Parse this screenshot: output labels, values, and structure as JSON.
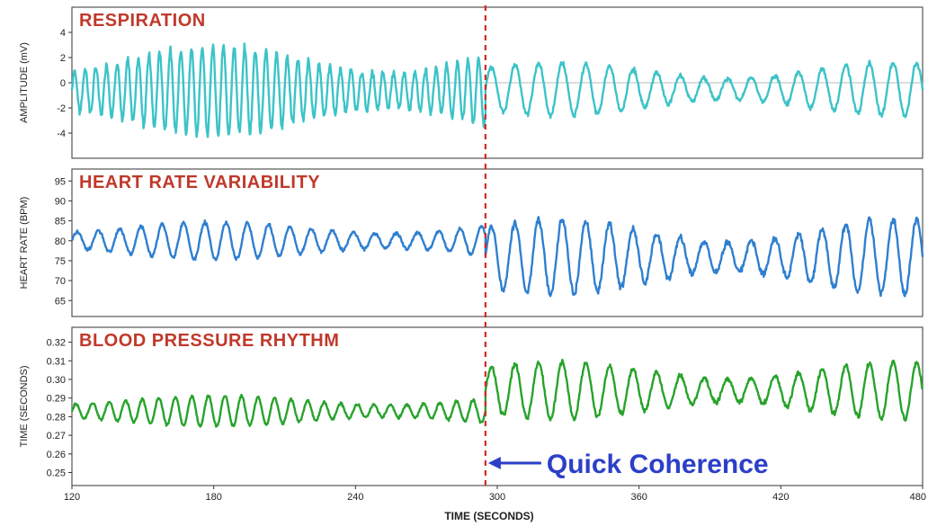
{
  "chart_data": {
    "type": "line",
    "shared_x": {
      "label": "TIME (SECONDS)",
      "range": [
        120,
        480
      ],
      "ticks": [
        120,
        180,
        240,
        300,
        360,
        420,
        480
      ]
    },
    "annotation": {
      "text": "Quick Coherence",
      "x": 295,
      "line_style": "dashed",
      "color": "#d62728",
      "arrow_color": "#2b3fc8"
    },
    "panels": [
      {
        "title": "RESPIRATION",
        "ylabel": "AMPLITUDE (mV)",
        "ylim": [
          -6,
          6
        ],
        "yticks": [
          4,
          2,
          0,
          -2,
          -4
        ],
        "color": "#3cc3c8",
        "baseline": 0,
        "signal": {
          "segments": [
            {
              "x_start": 120,
              "x_end": 295,
              "period": 4.5,
              "amplitude": 3.0,
              "center": -0.6
            },
            {
              "x_start": 295,
              "x_end": 480,
              "period": 10.0,
              "amplitude": 1.8,
              "center": -0.5
            }
          ]
        }
      },
      {
        "title": "HEART RATE VARIABILITY",
        "ylabel": "HEART RATE (BPM)",
        "ylim": [
          61,
          98
        ],
        "yticks": [
          95,
          90,
          85,
          80,
          75,
          70,
          65
        ],
        "color": "#2f7fd0",
        "signal": {
          "segments": [
            {
              "x_start": 120,
              "x_end": 295,
              "period": 9.0,
              "amplitude": 4.0,
              "center": 80
            },
            {
              "x_start": 295,
              "x_end": 480,
              "period": 10.0,
              "amplitude": 8.0,
              "center": 76
            }
          ]
        }
      },
      {
        "title": "BLOOD PRESSURE RHYTHM",
        "ylabel": "TIME (SECONDS)",
        "ylim": [
          0.243,
          0.328
        ],
        "yticks": [
          0.32,
          0.31,
          0.3,
          0.29,
          0.28,
          0.27,
          0.26,
          0.25
        ],
        "ytick_labels": [
          "0.32",
          "0.31",
          "0.30",
          "0.29",
          "0.28",
          "0.27",
          "0.26",
          "0.25"
        ],
        "color": "#27a32b",
        "signal": {
          "segments": [
            {
              "x_start": 120,
              "x_end": 295,
              "period": 7.0,
              "amplitude": 0.007,
              "center": 0.283
            },
            {
              "x_start": 295,
              "x_end": 480,
              "period": 10.0,
              "amplitude": 0.013,
              "center": 0.294
            }
          ]
        }
      }
    ]
  }
}
